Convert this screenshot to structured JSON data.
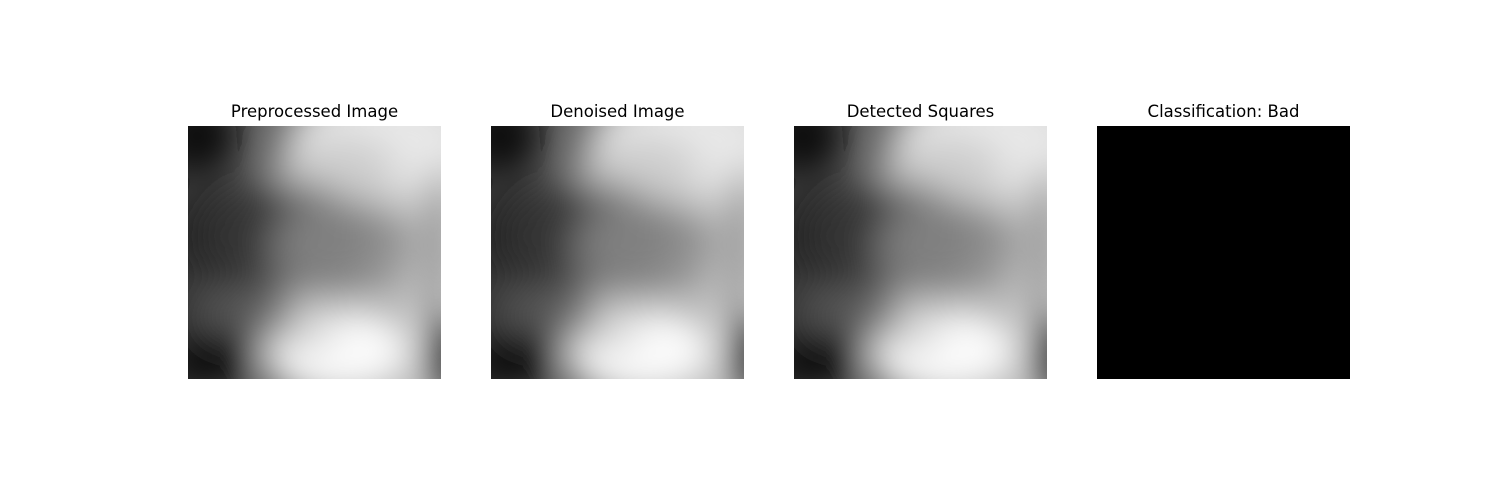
{
  "figure": {
    "panels": [
      {
        "title": "Preprocessed Image",
        "image": "grayscale-gradient"
      },
      {
        "title": "Denoised Image",
        "image": "grayscale-gradient"
      },
      {
        "title": "Detected Squares",
        "image": "grayscale-gradient"
      },
      {
        "title": "Classification: Bad",
        "image": "solid-black"
      }
    ]
  }
}
